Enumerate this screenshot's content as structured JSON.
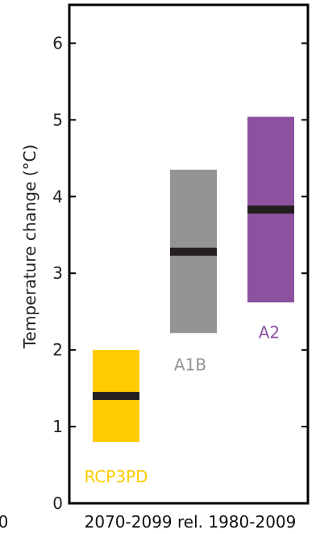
{
  "chart_data": {
    "type": "bar",
    "subtype": "floating-range",
    "title": "",
    "xlabel": "2070-2099 rel. 1980-2009",
    "ylabel": "Temperature change (°C)",
    "ylim": [
      0,
      6.5
    ],
    "yticks": [
      "0",
      "1",
      "2",
      "3",
      "4",
      "5",
      "6"
    ],
    "cut_off_left_label": "0",
    "categories": [
      "RCP3PD",
      "A1B",
      "A2"
    ],
    "series": [
      {
        "name": "RCP3PD",
        "low": 0.8,
        "high": 2.0,
        "median": 1.4,
        "color": "#ffcc00"
      },
      {
        "name": "A1B",
        "low": 2.22,
        "high": 4.35,
        "median": 3.28,
        "color": "#949494"
      },
      {
        "name": "A2",
        "low": 2.62,
        "high": 5.04,
        "median": 3.83,
        "color": "#8c52a0"
      }
    ],
    "median_color": "#231f20",
    "grid": false
  }
}
